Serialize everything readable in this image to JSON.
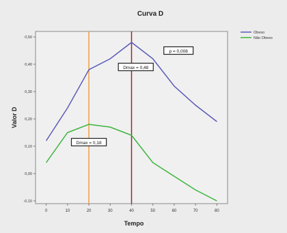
{
  "chart_data": {
    "type": "line",
    "title": "Curva D",
    "xlabel": "Tempo",
    "ylabel": "Valor D",
    "x": [
      0,
      10,
      20,
      30,
      40,
      50,
      60,
      70,
      80
    ],
    "xticks": [
      "0",
      "10",
      "20",
      "30",
      "40",
      "50",
      "60",
      "70",
      "80"
    ],
    "xlim": [
      -5,
      85
    ],
    "ylim": [
      -0.11,
      0.52
    ],
    "yticks": [
      {
        "value": 0.5,
        "label": "0,50"
      },
      {
        "value": 0.4,
        "label": "0,40"
      },
      {
        "value": 0.3,
        "label": "0,30"
      },
      {
        "value": 0.2,
        "label": "0,20"
      },
      {
        "value": 0.1,
        "label": "0,10"
      },
      {
        "value": 0.0,
        "label": "0,00"
      },
      {
        "value": -0.1,
        "label": "-0,10"
      }
    ],
    "series": [
      {
        "name": "Obeso",
        "color": "#5a5ab8",
        "values": [
          0.12,
          0.24,
          0.38,
          0.42,
          0.48,
          0.42,
          0.32,
          0.25,
          0.19
        ]
      },
      {
        "name": "Não Obeso",
        "color": "#3cb43c",
        "values": [
          0.04,
          0.15,
          0.18,
          0.17,
          0.14,
          0.04,
          -0.01,
          -0.06,
          -0.1
        ]
      }
    ],
    "vlines": [
      {
        "x": 20,
        "color": "#f0a040"
      },
      {
        "x": 40,
        "color": "#9a2a2a"
      }
    ],
    "annotations": [
      {
        "text": "p = 0,008",
        "x": 62,
        "y": 0.45
      },
      {
        "text": "Dmax = 0,48",
        "x": 42,
        "y": 0.39
      },
      {
        "text": "Dmax = 0,18",
        "x": 20,
        "y": 0.115
      }
    ],
    "legend_position": "top-right",
    "grid": false
  }
}
